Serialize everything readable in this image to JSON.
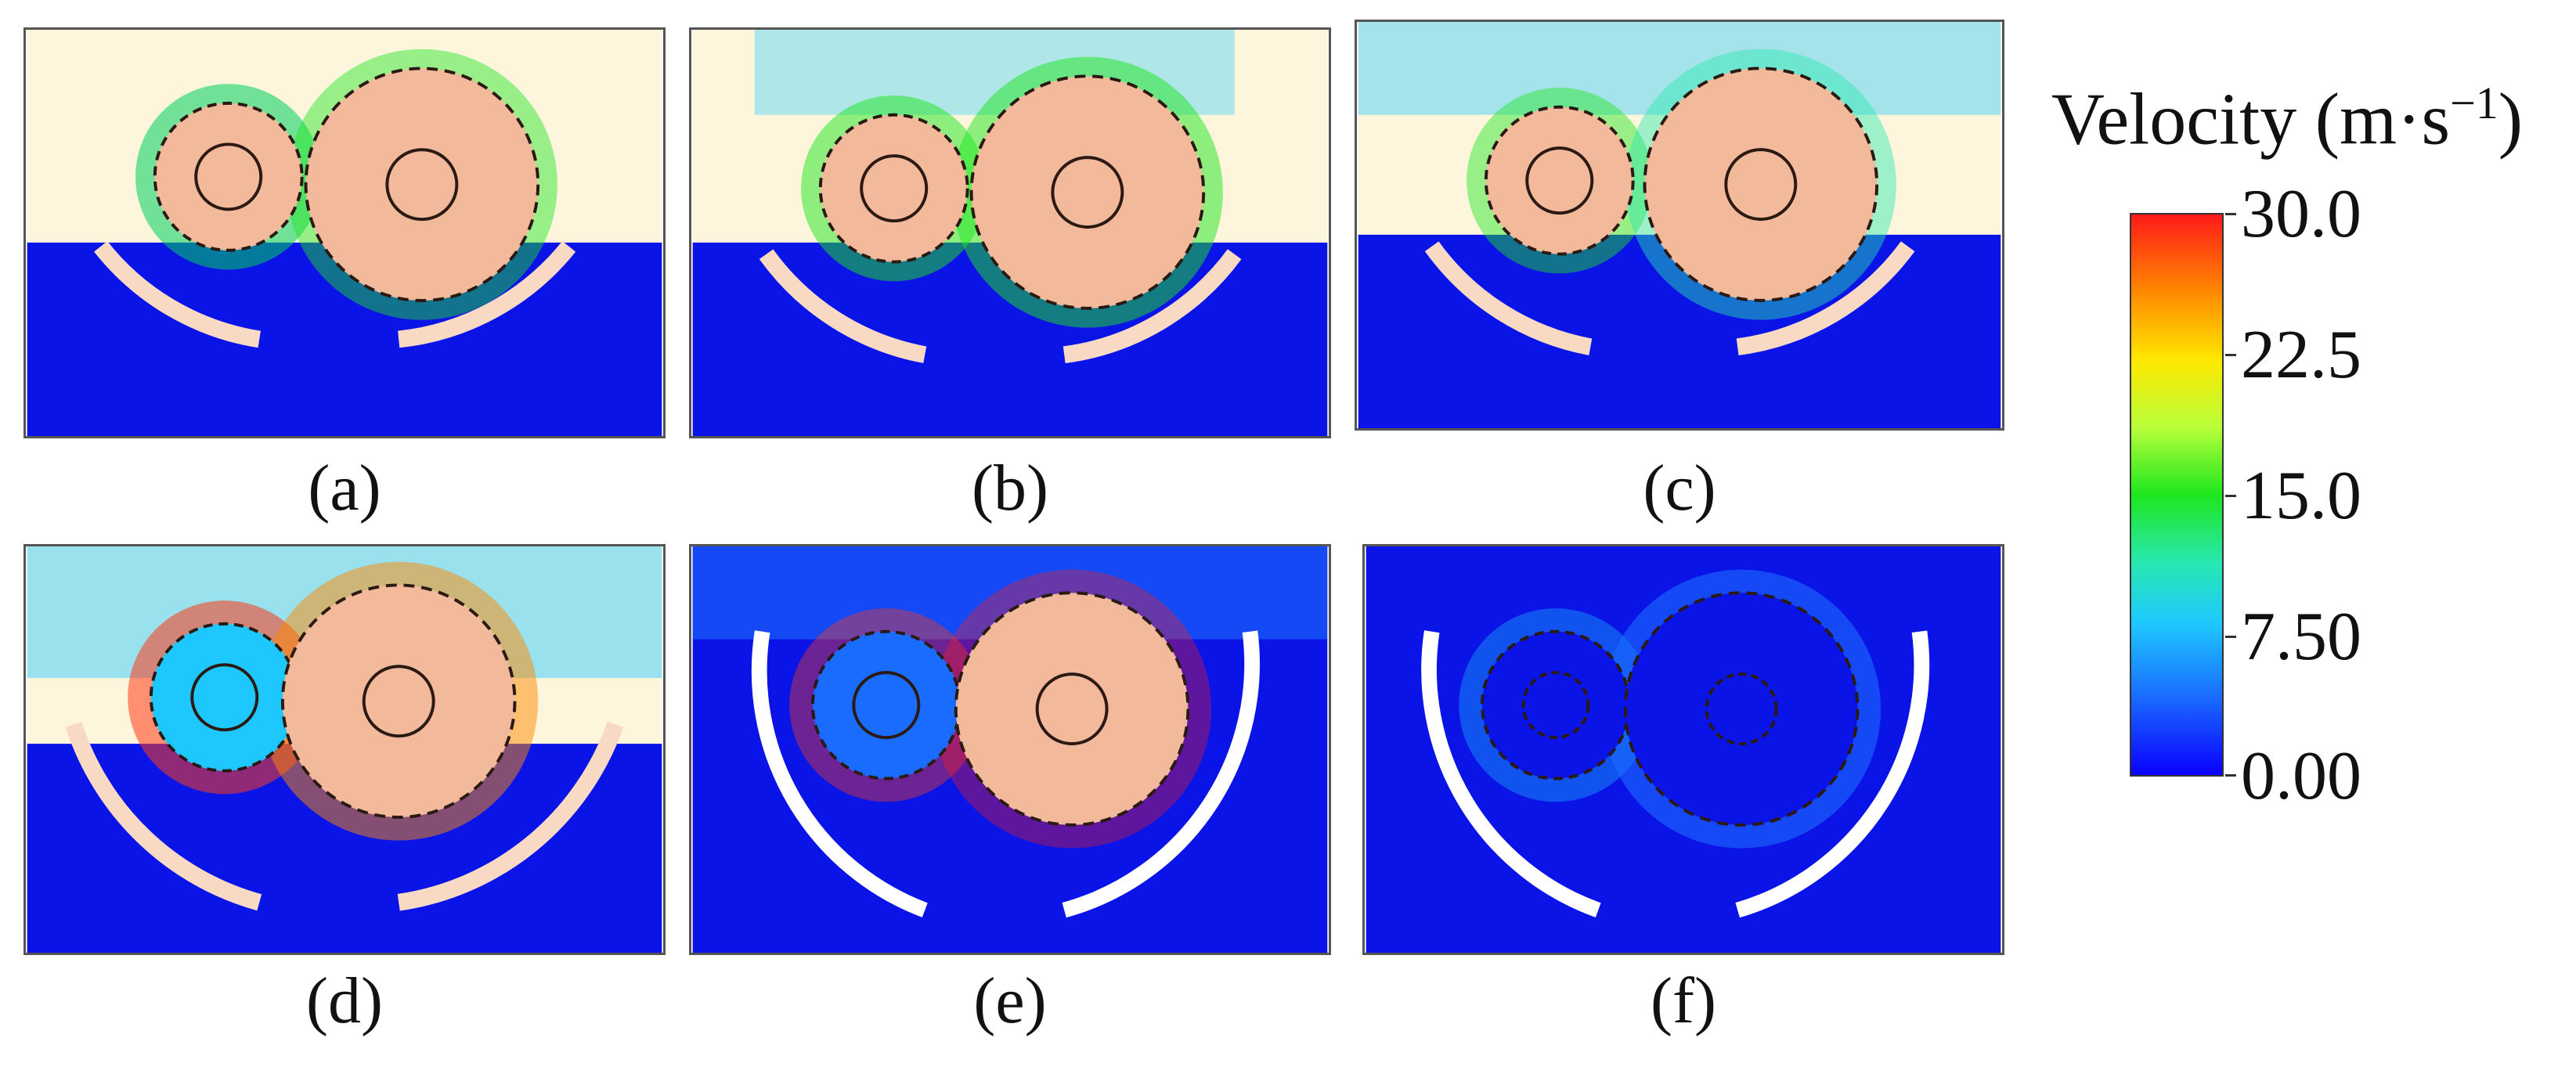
{
  "panels": [
    {
      "id": "a",
      "label": "(a)"
    },
    {
      "id": "b",
      "label": "(b)"
    },
    {
      "id": "c",
      "label": "(c)"
    },
    {
      "id": "d",
      "label": "(d)"
    },
    {
      "id": "e",
      "label": "(e)"
    },
    {
      "id": "f",
      "label": "(f)"
    }
  ],
  "colorbar": {
    "title": "Velocity (m·s",
    "title_exponent": "−1",
    "title_close": ")",
    "ticks": [
      "30.0",
      "22.5",
      "15.0",
      "7.50",
      "0.00"
    ],
    "colors": {
      "max": "#ff1a1a",
      "mid_high": "#ffe800",
      "mid": "#1ee61e",
      "mid_low": "#1ec8ff",
      "min": "#0a00ff"
    }
  },
  "scene_colors": {
    "air": "#fdf6dc",
    "oil": "#0a14e6",
    "gear_body": "#f2b99a",
    "gear_outline": "#2b1a14",
    "housing": "#f7d9c4"
  }
}
